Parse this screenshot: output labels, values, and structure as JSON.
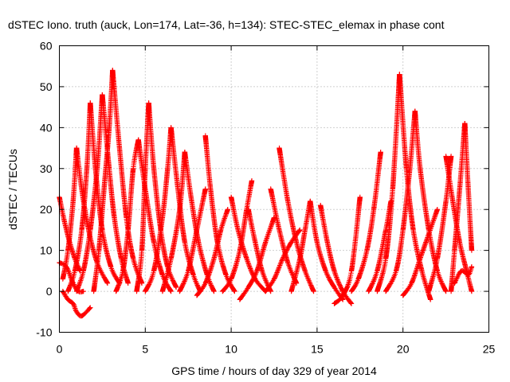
{
  "chart_data": {
    "type": "scatter",
    "title": "dSTEC Iono. truth (auck, Lon=174, Lat=-36, h=134): STEC-STEC_elemax in phase cont",
    "xlabel": "GPS time / hours of day 329 of year 2014",
    "ylabel": "dSTEC  / TECUs",
    "xlim": [
      0,
      25
    ],
    "ylim": [
      -10,
      60
    ],
    "xticks": [
      0,
      5,
      10,
      15,
      20,
      25
    ],
    "yticks": [
      -10,
      0,
      10,
      20,
      30,
      40,
      50,
      60
    ],
    "grid": true,
    "marker": "+",
    "color": "#ff0000",
    "series": [
      {
        "x": [
          0.0,
          0.3,
          0.6,
          0.9,
          1.2
        ],
        "y": [
          23,
          17,
          12,
          8,
          5
        ]
      },
      {
        "x": [
          0.0,
          0.4,
          0.8,
          1.1,
          1.4
        ],
        "y": [
          7,
          6,
          2,
          0,
          0
        ]
      },
      {
        "x": [
          0.2,
          0.5,
          0.8,
          1.0,
          1.3,
          1.8
        ],
        "y": [
          0,
          -2,
          -3,
          -5,
          -6,
          -4
        ]
      },
      {
        "x": [
          0.2,
          0.5,
          0.8,
          1.0
        ],
        "y": [
          3,
          10,
          22,
          35
        ]
      },
      {
        "x": [
          1.0,
          1.3,
          1.7,
          2.2,
          2.8
        ],
        "y": [
          35,
          25,
          15,
          7,
          2
        ]
      },
      {
        "x": [
          0.5,
          0.9,
          1.3,
          1.6,
          1.8
        ],
        "y": [
          0,
          5,
          15,
          30,
          46
        ]
      },
      {
        "x": [
          1.8,
          2.1,
          2.5,
          3.0,
          3.5
        ],
        "y": [
          46,
          30,
          15,
          6,
          2
        ]
      },
      {
        "x": [
          1.0,
          1.4,
          1.8,
          2.2,
          2.5
        ],
        "y": [
          0,
          5,
          15,
          30,
          48
        ]
      },
      {
        "x": [
          2.5,
          2.9,
          3.2,
          3.6,
          4.0
        ],
        "y": [
          48,
          30,
          18,
          8,
          2
        ]
      },
      {
        "x": [
          2.0,
          2.3,
          2.6,
          2.9,
          3.1
        ],
        "y": [
          0,
          10,
          25,
          40,
          54
        ]
      },
      {
        "x": [
          3.1,
          3.5,
          3.9,
          4.3,
          4.8
        ],
        "y": [
          54,
          35,
          18,
          8,
          2
        ]
      },
      {
        "x": [
          3.3,
          3.7,
          4.0,
          4.3,
          4.6
        ],
        "y": [
          0,
          5,
          15,
          30,
          37
        ]
      },
      {
        "x": [
          4.6,
          5.0,
          5.5,
          6.0,
          6.5
        ],
        "y": [
          37,
          25,
          12,
          4,
          0
        ]
      },
      {
        "x": [
          4.5,
          4.8,
          5.0,
          5.2
        ],
        "y": [
          0,
          10,
          30,
          46
        ]
      },
      {
        "x": [
          5.2,
          5.5,
          5.9,
          6.3,
          6.8
        ],
        "y": [
          46,
          30,
          15,
          6,
          1
        ]
      },
      {
        "x": [
          5.0,
          5.5,
          6.0,
          6.3,
          6.5
        ],
        "y": [
          0,
          5,
          18,
          30,
          40
        ]
      },
      {
        "x": [
          6.5,
          6.9,
          7.3,
          7.8,
          8.2
        ],
        "y": [
          40,
          25,
          12,
          4,
          0
        ]
      },
      {
        "x": [
          6.0,
          6.5,
          7.0,
          7.3
        ],
        "y": [
          0,
          8,
          20,
          34
        ]
      },
      {
        "x": [
          7.3,
          7.7,
          8.1,
          8.6,
          9.0
        ],
        "y": [
          34,
          22,
          12,
          4,
          0
        ]
      },
      {
        "x": [
          7.0,
          7.5,
          8.0,
          8.5
        ],
        "y": [
          0,
          5,
          15,
          25
        ]
      },
      {
        "x": [
          8.5,
          8.8,
          9.2,
          9.7,
          10.2
        ],
        "y": [
          38,
          25,
          12,
          4,
          0
        ]
      },
      {
        "x": [
          8.0,
          8.5,
          9.0,
          9.4,
          9.8
        ],
        "y": [
          -1,
          2,
          8,
          15,
          20
        ]
      },
      {
        "x": [
          10.0,
          10.4,
          10.9,
          11.4,
          12.0
        ],
        "y": [
          23,
          15,
          8,
          3,
          0
        ]
      },
      {
        "x": [
          9.5,
          10.0,
          10.5,
          10.9,
          11.2
        ],
        "y": [
          0,
          3,
          10,
          20,
          27
        ]
      },
      {
        "x": [
          11.0,
          11.4,
          11.8,
          12.3
        ],
        "y": [
          20,
          12,
          5,
          0
        ]
      },
      {
        "x": [
          10.5,
          11.0,
          11.5,
          12.0,
          12.5
        ],
        "y": [
          -2,
          1,
          5,
          12,
          18
        ]
      },
      {
        "x": [
          12.3,
          12.8,
          13.3,
          13.8
        ],
        "y": [
          25,
          15,
          7,
          2
        ]
      },
      {
        "x": [
          12.8,
          13.3,
          13.8,
          14.3,
          14.8
        ],
        "y": [
          35,
          22,
          12,
          5,
          0
        ]
      },
      {
        "x": [
          12.0,
          12.5,
          13.0,
          13.5,
          14.0
        ],
        "y": [
          0,
          3,
          8,
          12,
          15
        ]
      },
      {
        "x": [
          13.5,
          14.0,
          14.3,
          14.6
        ],
        "y": [
          0,
          8,
          15,
          22
        ]
      },
      {
        "x": [
          14.6,
          15.0,
          15.5,
          16.0,
          16.5
        ],
        "y": [
          22,
          12,
          5,
          1,
          -2
        ]
      },
      {
        "x": [
          15.2,
          15.6,
          16.0,
          16.5,
          17.0
        ],
        "y": [
          21,
          12,
          5,
          0,
          -3
        ]
      },
      {
        "x": [
          16.0,
          16.5,
          17.0,
          17.5
        ],
        "y": [
          -3,
          -1,
          5,
          23
        ]
      },
      {
        "x": [
          17.0,
          17.4,
          17.9,
          18.3,
          18.7
        ],
        "y": [
          0,
          3,
          10,
          20,
          34
        ]
      },
      {
        "x": [
          18.0,
          18.5,
          19.0,
          19.3
        ],
        "y": [
          0,
          5,
          15,
          22
        ]
      },
      {
        "x": [
          18.5,
          19.0,
          19.4,
          19.8
        ],
        "y": [
          0,
          8,
          25,
          53
        ]
      },
      {
        "x": [
          19.8,
          20.2,
          20.6,
          21.1,
          21.6
        ],
        "y": [
          53,
          30,
          15,
          5,
          -2
        ]
      },
      {
        "x": [
          19.0,
          19.6,
          20.0,
          20.4,
          20.7
        ],
        "y": [
          0,
          5,
          15,
          30,
          44
        ]
      },
      {
        "x": [
          20.7,
          21.0,
          21.5,
          22.0,
          22.5
        ],
        "y": [
          44,
          30,
          15,
          5,
          0
        ]
      },
      {
        "x": [
          20.0,
          20.5,
          21.0,
          21.5,
          22.0
        ],
        "y": [
          -1,
          2,
          8,
          14,
          20
        ]
      },
      {
        "x": [
          21.5,
          22.0,
          22.5,
          22.8
        ],
        "y": [
          0,
          8,
          22,
          33
        ]
      },
      {
        "x": [
          22.5,
          22.9,
          23.3,
          23.7,
          24.0
        ],
        "y": [
          33,
          22,
          12,
          5,
          0
        ]
      },
      {
        "x": [
          22.8,
          23.0,
          23.3,
          23.6
        ],
        "y": [
          0,
          10,
          25,
          41
        ]
      },
      {
        "x": [
          23.6,
          23.8,
          24.0
        ],
        "y": [
          41,
          25,
          10
        ]
      },
      {
        "x": [
          23.0,
          23.4,
          23.8,
          24.0
        ],
        "y": [
          2,
          5,
          4,
          6
        ]
      }
    ]
  }
}
